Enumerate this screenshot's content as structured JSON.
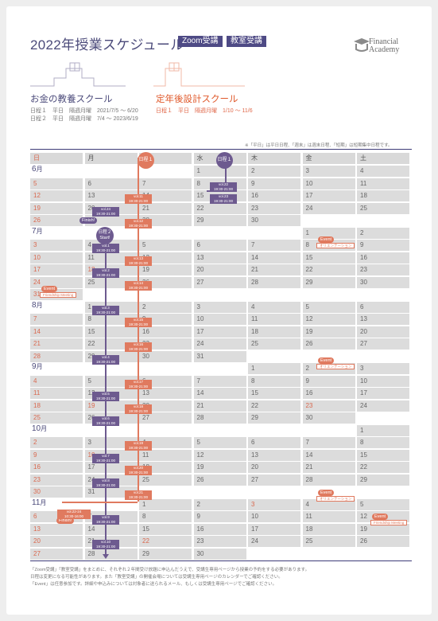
{
  "header": {
    "title": "2022年授業スケジュール",
    "tag_zoom": "Zoom受講",
    "tag_room": "教室受講",
    "logo_line1": "Financial",
    "logo_line2": "Academy"
  },
  "schools": {
    "left": {
      "name": "お金の教養スクール",
      "line1": "日程１　平日　隔週月曜　2021/7/5 〜 6/20",
      "line2": "日程２　平日　隔週月曜　7/4 〜 2023/6/19"
    },
    "right": {
      "name": "定年後設計スクール",
      "line1": "日程１　平日　隔週月曜　1/10 〜 11/6"
    }
  },
  "note_top": "※「平日」は平日日程、「週末」は週末日程、「短期」は短期集中日程です。",
  "weekdays": [
    "日",
    "月",
    "火",
    "水",
    "木",
    "金",
    "土"
  ],
  "markers": {
    "sched1_tue": "日程１",
    "sched1_wed": "日程１",
    "sched2_start": "日程２",
    "start": "Start!",
    "finish": "Finish!"
  },
  "months": {
    "jun": "6",
    "jul": "7",
    "aug": "8",
    "sep": "9",
    "oct": "10",
    "nov": "11",
    "unit": "月"
  },
  "rows": [
    [
      "",
      "",
      "",
      "1",
      "2",
      "3",
      "4"
    ],
    [
      "5",
      "6",
      "7",
      "8",
      "9",
      "10",
      "11"
    ],
    [
      "12",
      "13",
      "14",
      "15",
      "16",
      "17",
      "18"
    ],
    [
      "19",
      "20",
      "21",
      "22",
      "23",
      "24",
      "25"
    ],
    [
      "26",
      "27",
      "28",
      "29",
      "30",
      "",
      ""
    ],
    [
      "",
      "",
      "",
      "",
      "",
      "1",
      "2"
    ],
    [
      "3",
      "4",
      "5",
      "6",
      "7",
      "8",
      "9"
    ],
    [
      "10",
      "11",
      "12",
      "13",
      "14",
      "15",
      "16"
    ],
    [
      "17",
      "18",
      "19",
      "20",
      "21",
      "22",
      "23"
    ],
    [
      "24",
      "25",
      "26",
      "27",
      "28",
      "29",
      "30"
    ],
    [
      "31",
      "",
      "",
      "",
      "",
      "",
      ""
    ],
    [
      "",
      "1",
      "2",
      "3",
      "4",
      "5",
      "6"
    ],
    [
      "7",
      "8",
      "9",
      "10",
      "11",
      "12",
      "13"
    ],
    [
      "14",
      "15",
      "16",
      "17",
      "18",
      "19",
      "20"
    ],
    [
      "21",
      "22",
      "23",
      "24",
      "25",
      "26",
      "27"
    ],
    [
      "28",
      "29",
      "30",
      "31",
      "",
      "",
      ""
    ],
    [
      "",
      "",
      "",
      "",
      "1",
      "2",
      "3"
    ],
    [
      "4",
      "5",
      "6",
      "7",
      "8",
      "9",
      "10"
    ],
    [
      "11",
      "12",
      "13",
      "14",
      "15",
      "16",
      "17"
    ],
    [
      "18",
      "19",
      "20",
      "21",
      "22",
      "23",
      "24"
    ],
    [
      "25",
      "26",
      "27",
      "28",
      "29",
      "30",
      ""
    ],
    [
      "",
      "",
      "",
      "",
      "",
      "",
      "1"
    ],
    [
      "2",
      "3",
      "4",
      "5",
      "6",
      "7",
      "8"
    ],
    [
      "9",
      "10",
      "11",
      "12",
      "13",
      "14",
      "15"
    ],
    [
      "16",
      "17",
      "18",
      "19",
      "20",
      "21",
      "22"
    ],
    [
      "23",
      "24",
      "25",
      "26",
      "27",
      "28",
      "29"
    ],
    [
      "30",
      "31",
      "",
      "",
      "",
      "",
      ""
    ],
    [
      "",
      "",
      "1",
      "2",
      "3",
      "4",
      "5"
    ],
    [
      "6",
      "7",
      "8",
      "9",
      "10",
      "11",
      "12"
    ],
    [
      "13",
      "14",
      "15",
      "16",
      "17",
      "18",
      "19"
    ],
    [
      "20",
      "21",
      "22",
      "23",
      "24",
      "25",
      "26"
    ],
    [
      "27",
      "28",
      "29",
      "30",
      "",
      "",
      ""
    ]
  ],
  "holidays": [
    "18",
    "19",
    "10",
    "3",
    "23"
  ],
  "badges": {
    "b1": "vol.22\n19:30-21:00",
    "b2": "vol.23\n19:30-21:00",
    "b3": "vol.11\n19:30-21:00",
    "b4": "vol.24\n19:30-21:00",
    "b5": "vol.12\n19:30-21:00",
    "b6": "vol.1\n19:30-21:00",
    "b7": "vol.13\n19:30-21:00",
    "b8": "vol.2\n19:30-21:00",
    "b9": "vol.14\n19:30-21:00",
    "b10": "vol.3\n19:30-21:00",
    "b11": "vol.15\n19:30-21:00",
    "b12": "vol.16\n19:30-21:00",
    "b13": "vol.4\n19:30-21:00",
    "b14": "vol.17\n19:30-21:00",
    "b15": "vol.5\n19:30-21:00",
    "b16": "vol.18\n19:30-21:00",
    "b17": "vol.6\n19:30-21:00",
    "b18": "vol.19\n19:30-21:00",
    "b19": "vol.7\n19:30-21:00",
    "b20": "vol.20\n19:30-21:00",
    "b21": "vol.8\n19:30-21:00",
    "b22": "vol.21\n19:30-21:00",
    "b23": "vol.22-24\n10:30-16:00",
    "b24": "vol.9\n19:30-21:00",
    "b25": "vol.10\n19:30-21:00"
  },
  "events": {
    "label": "Event",
    "orientation": "オリエンテーション",
    "friendship": "Friendship Meeting"
  },
  "footnotes": {
    "l1": "「Zoom受講」「教室受講」をまとめに、それぞれ２年間受け放題に申込んだうえで、受講生専用ページから授業の予約をする必要があります。",
    "l2": "日程は変更になる可能性があります。また「教室受講」の開催会場については受講生専用ページのカレンダーでご確認ください。",
    "l3": "「Event」は任意参加です。詳細や申込みについては対象者に送られるメール、もしくは受講生専用ページでご確認ください。"
  },
  "colors": {
    "navy": "#3e3b78",
    "orange": "#e07a5f",
    "purple": "#6d5a8f",
    "grey": "#dcdcdc"
  }
}
